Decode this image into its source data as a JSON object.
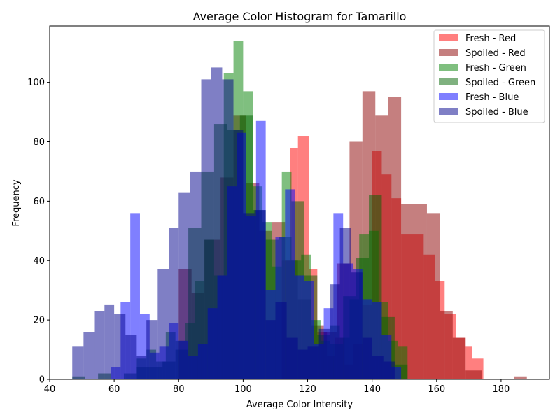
{
  "chart_data": {
    "type": "histogram",
    "title": "Average Color Histogram for Tamarillo",
    "xlabel": "Average Color Intensity",
    "ylabel": "Frequency",
    "xlim": [
      40,
      195
    ],
    "ylim": [
      0,
      119
    ],
    "xticks": [
      40,
      60,
      80,
      100,
      120,
      140,
      160,
      180
    ],
    "yticks": [
      0,
      20,
      40,
      60,
      80,
      100
    ],
    "legend_position": "top-right",
    "grid": false,
    "series": [
      {
        "name": "Fresh - Red",
        "color": "#ff0000",
        "alpha": 0.5,
        "bins": [
          [
            112,
            114.5,
            40
          ],
          [
            114.5,
            117,
            78
          ],
          [
            117,
            120.5,
            82
          ],
          [
            120.5,
            123,
            37
          ],
          [
            123,
            126,
            16
          ],
          [
            126,
            128.5,
            8
          ],
          [
            128.5,
            131.5,
            14
          ],
          [
            131.5,
            134,
            5
          ],
          [
            134,
            137,
            12
          ],
          [
            137,
            140,
            25
          ],
          [
            140,
            143,
            77
          ],
          [
            143,
            146,
            69
          ],
          [
            146,
            149,
            61
          ],
          [
            149,
            153,
            49
          ],
          [
            153,
            156,
            49
          ],
          [
            156,
            159.5,
            42
          ],
          [
            159.5,
            162.5,
            33
          ],
          [
            162.5,
            166,
            22
          ],
          [
            166,
            169,
            14
          ],
          [
            169,
            171,
            11
          ],
          [
            171,
            174.5,
            7
          ]
        ]
      },
      {
        "name": "Spoiled - Red",
        "color": "#8b0000",
        "alpha": 0.5,
        "bins": [
          [
            80,
            84,
            37
          ],
          [
            84,
            88,
            29
          ],
          [
            88,
            93,
            47
          ],
          [
            93,
            97,
            68
          ],
          [
            97,
            101,
            89
          ],
          [
            101,
            105,
            66
          ],
          [
            105,
            109,
            50
          ],
          [
            109,
            113,
            53
          ],
          [
            113,
            117,
            40
          ],
          [
            117,
            121,
            27
          ],
          [
            121,
            125,
            18
          ],
          [
            125,
            129,
            16
          ],
          [
            129,
            133,
            39
          ],
          [
            133,
            137,
            80
          ],
          [
            137,
            141,
            97
          ],
          [
            141,
            145,
            89
          ],
          [
            145,
            149,
            95
          ],
          [
            149,
            153,
            59
          ],
          [
            153,
            157,
            59
          ],
          [
            157,
            161,
            56
          ],
          [
            161,
            165,
            23
          ],
          [
            165,
            169,
            14
          ],
          [
            169,
            174,
            3
          ],
          [
            184,
            188,
            1
          ]
        ]
      },
      {
        "name": "Fresh - Green",
        "color": "#008000",
        "alpha": 0.5,
        "bins": [
          [
            67,
            70,
            7
          ],
          [
            70,
            73,
            10
          ],
          [
            73,
            76,
            6
          ],
          [
            76,
            79,
            16
          ],
          [
            79,
            82,
            13
          ],
          [
            82,
            85,
            19
          ],
          [
            85,
            88,
            33
          ],
          [
            88,
            91,
            47
          ],
          [
            91,
            94,
            35
          ],
          [
            94,
            97,
            103
          ],
          [
            97,
            100,
            114
          ],
          [
            100,
            103,
            97
          ],
          [
            103,
            106,
            65
          ],
          [
            106,
            109,
            53
          ],
          [
            109,
            112,
            38
          ],
          [
            112,
            115,
            70
          ],
          [
            115,
            118,
            40
          ],
          [
            118,
            121,
            42
          ],
          [
            121,
            124,
            20
          ],
          [
            124,
            127,
            13
          ],
          [
            127,
            130,
            18
          ],
          [
            130,
            133,
            14
          ],
          [
            133,
            136,
            27
          ],
          [
            136,
            139,
            49
          ],
          [
            139,
            142,
            50
          ],
          [
            142,
            145,
            26
          ],
          [
            145,
            148,
            13
          ],
          [
            148,
            151,
            11
          ]
        ]
      },
      {
        "name": "Spoiled - Green",
        "color": "#006400",
        "alpha": 0.5,
        "bins": [
          [
            47,
            51,
            1
          ],
          [
            51,
            55,
            0
          ],
          [
            55,
            59,
            2
          ],
          [
            59,
            63,
            0
          ],
          [
            63,
            67,
            2
          ],
          [
            67,
            71,
            4
          ],
          [
            71,
            75,
            4
          ],
          [
            75,
            79,
            6
          ],
          [
            79,
            83,
            10
          ],
          [
            83,
            87,
            51
          ],
          [
            87,
            91,
            70
          ],
          [
            91,
            95,
            86
          ],
          [
            95,
            99,
            84
          ],
          [
            99,
            103,
            89
          ],
          [
            103,
            107,
            57
          ],
          [
            107,
            111,
            47
          ],
          [
            111,
            115,
            48
          ],
          [
            115,
            119,
            60
          ],
          [
            119,
            123,
            35
          ],
          [
            123,
            127,
            15
          ],
          [
            127,
            131,
            12
          ],
          [
            131,
            135,
            28
          ],
          [
            135,
            139,
            41
          ],
          [
            139,
            143,
            62
          ],
          [
            143,
            147,
            21
          ],
          [
            147,
            151,
            5
          ]
        ]
      },
      {
        "name": "Fresh - Blue",
        "color": "#0000ff",
        "alpha": 0.5,
        "bins": [
          [
            59,
            62,
            4
          ],
          [
            62,
            65,
            26
          ],
          [
            65,
            68,
            56
          ],
          [
            68,
            71,
            22
          ],
          [
            71,
            74,
            9
          ],
          [
            74,
            77,
            11
          ],
          [
            77,
            80,
            19
          ],
          [
            80,
            83,
            13
          ],
          [
            83,
            86,
            8
          ],
          [
            86,
            89,
            12
          ],
          [
            89,
            92,
            24
          ],
          [
            92,
            95,
            35
          ],
          [
            95,
            98,
            65
          ],
          [
            98,
            101,
            83
          ],
          [
            101,
            104,
            55
          ],
          [
            104,
            107,
            87
          ],
          [
            107,
            110,
            30
          ],
          [
            110,
            113,
            48
          ],
          [
            113,
            116,
            64
          ],
          [
            116,
            119,
            35
          ],
          [
            119,
            122,
            33
          ],
          [
            122,
            125,
            12
          ],
          [
            125,
            128,
            24
          ],
          [
            128,
            131,
            56
          ],
          [
            131,
            134,
            39
          ],
          [
            134,
            137,
            37
          ],
          [
            137,
            140,
            27
          ],
          [
            140,
            143,
            26
          ],
          [
            143,
            146,
            15
          ],
          [
            146,
            149,
            4
          ]
        ]
      },
      {
        "name": "Spoiled - Blue",
        "color": "#00008b",
        "alpha": 0.5,
        "bins": [
          [
            47,
            50.5,
            11
          ],
          [
            50.5,
            54,
            16
          ],
          [
            54,
            57,
            23
          ],
          [
            57,
            60,
            25
          ],
          [
            60,
            63.5,
            22
          ],
          [
            63.5,
            67,
            15
          ],
          [
            67,
            70,
            8
          ],
          [
            70,
            73.5,
            20
          ],
          [
            73.5,
            77,
            37
          ],
          [
            77,
            80,
            51
          ],
          [
            80,
            83.5,
            63
          ],
          [
            83.5,
            87,
            70
          ],
          [
            87,
            90,
            101
          ],
          [
            90,
            93.5,
            105
          ],
          [
            93.5,
            97,
            101
          ],
          [
            97,
            100,
            84
          ],
          [
            100,
            103.5,
            56
          ],
          [
            103.5,
            107,
            57
          ],
          [
            107,
            110,
            20
          ],
          [
            110,
            113.5,
            26
          ],
          [
            113.5,
            117,
            14
          ],
          [
            117,
            120,
            10
          ],
          [
            120,
            123.5,
            11
          ],
          [
            123.5,
            127,
            17
          ],
          [
            127,
            130,
            32
          ],
          [
            130,
            133.5,
            51
          ],
          [
            133.5,
            137,
            36
          ],
          [
            137,
            140,
            14
          ],
          [
            140,
            143.5,
            8
          ],
          [
            143.5,
            147,
            6
          ]
        ]
      }
    ]
  }
}
